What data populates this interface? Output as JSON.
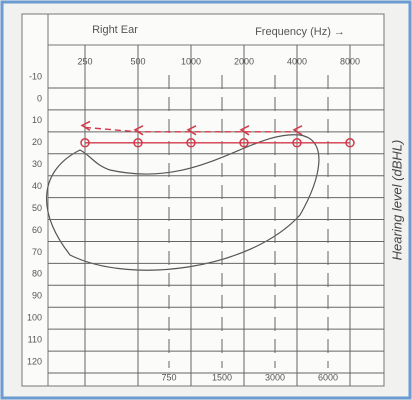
{
  "chart_data": {
    "type": "line",
    "title": "Right Ear",
    "xlabel": "Frequency (Hz) →",
    "ylabel": "Hearing level (dBHL)",
    "x": [
      250,
      500,
      1000,
      2000,
      4000,
      8000
    ],
    "series": [
      {
        "color": "#d23a4a",
        "marker": "circle",
        "dash": false,
        "values": [
          20,
          20,
          20,
          20,
          20,
          20
        ]
      },
      {
        "color": "#d23a4a",
        "marker": "bracket",
        "dash": true,
        "values": [
          13,
          15,
          15,
          15,
          15,
          null
        ]
      }
    ],
    "log_x": true,
    "xlim": [
      250,
      8000
    ],
    "xticks": [
      250,
      500,
      1000,
      2000,
      4000,
      8000
    ],
    "xticks_minor": [
      750,
      1500,
      3000,
      6000
    ],
    "ylim": [
      -10,
      120
    ],
    "yticks": [
      -10,
      0,
      10,
      20,
      30,
      40,
      50,
      60,
      70,
      80,
      90,
      100,
      110,
      120
    ],
    "grid": true,
    "y_inverted": true
  }
}
